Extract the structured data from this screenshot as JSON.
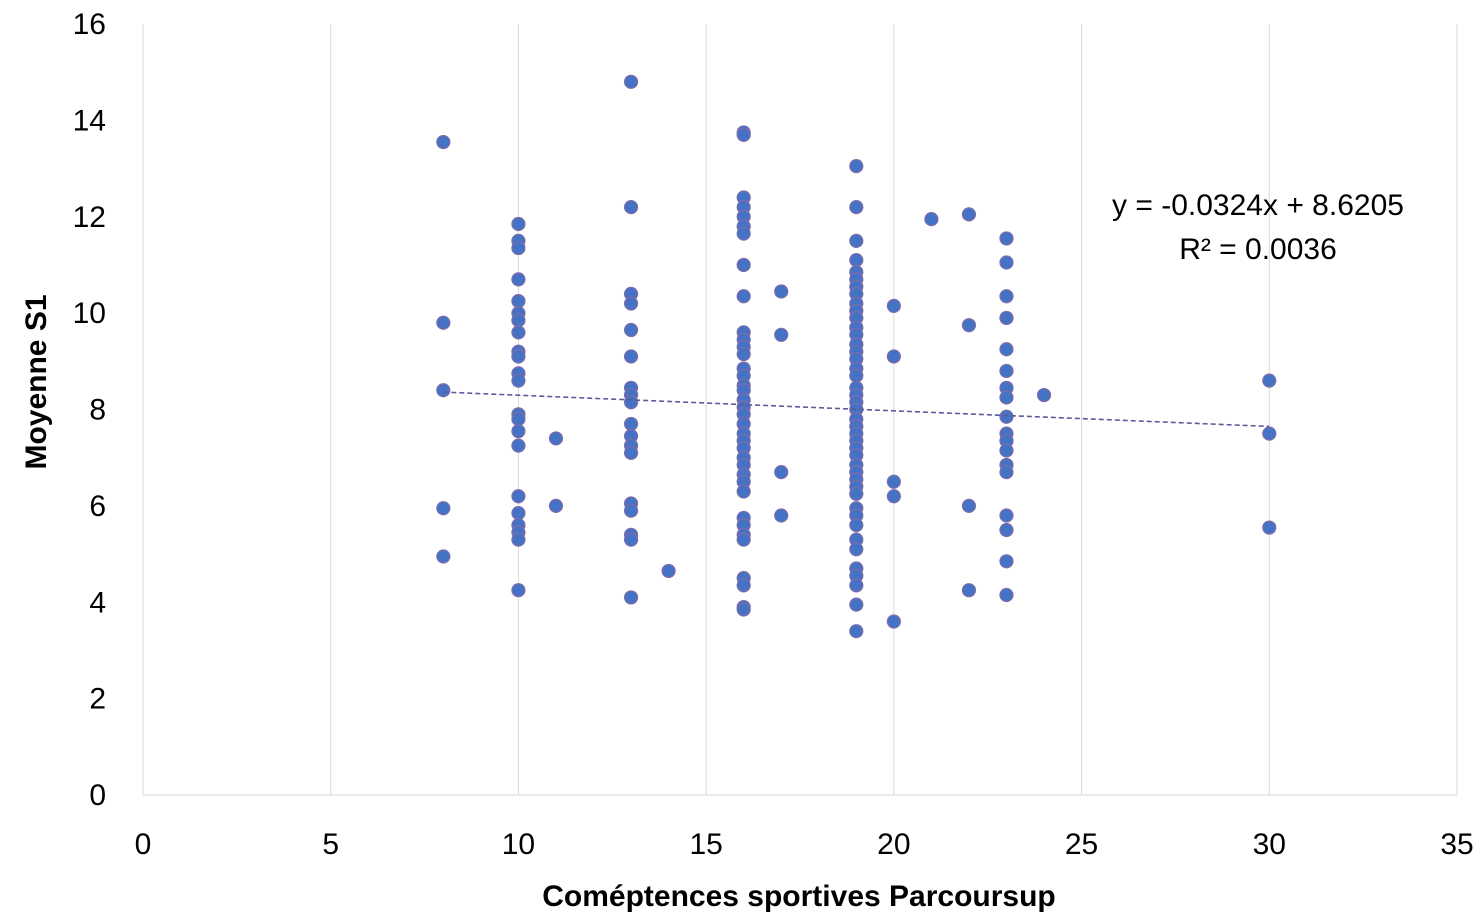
{
  "chart_data": {
    "type": "scatter",
    "xlabel": "Coméptences sportives Parcoursup",
    "ylabel": "Moyenne S1",
    "xlim": [
      0,
      35
    ],
    "ylim": [
      0,
      16
    ],
    "x_ticks": [
      0,
      5,
      10,
      15,
      20,
      25,
      30,
      35
    ],
    "y_ticks": [
      0,
      2,
      4,
      6,
      8,
      10,
      12,
      14,
      16
    ],
    "x_tick_labels": [
      "0",
      "5",
      "10",
      "15",
      "20",
      "25",
      "30",
      "35"
    ],
    "y_tick_labels": [
      "0",
      "2",
      "4",
      "6",
      "8",
      "10",
      "12",
      "14",
      "16"
    ],
    "grid": {
      "vertical": true,
      "horizontal": false
    },
    "marker_color": "#4472C4",
    "marker_edge_color": "#7F6CA8",
    "trendline": {
      "type": "linear",
      "slope": -0.0324,
      "intercept": 8.6205,
      "x_range": [
        8,
        30
      ],
      "color": "#5B5B9E",
      "style": "dashed",
      "equation_label": "y = -0.0324x + 8.6205",
      "r2_label": "R² = 0.0036"
    },
    "series": [
      {
        "points": [
          [
            8,
            13.55
          ],
          [
            8,
            9.8
          ],
          [
            8,
            8.4
          ],
          [
            8,
            5.95
          ],
          [
            8,
            4.95
          ],
          [
            10,
            11.85
          ],
          [
            10,
            11.5
          ],
          [
            10,
            11.35
          ],
          [
            10,
            10.7
          ],
          [
            10,
            10.25
          ],
          [
            10,
            10.0
          ],
          [
            10,
            9.85
          ],
          [
            10,
            9.6
          ],
          [
            10,
            9.2
          ],
          [
            10,
            9.1
          ],
          [
            10,
            8.75
          ],
          [
            10,
            8.6
          ],
          [
            10,
            7.9
          ],
          [
            10,
            7.8
          ],
          [
            10,
            7.55
          ],
          [
            10,
            7.25
          ],
          [
            10,
            6.2
          ],
          [
            10,
            5.85
          ],
          [
            10,
            5.6
          ],
          [
            10,
            5.45
          ],
          [
            10,
            5.3
          ],
          [
            10,
            4.25
          ],
          [
            11,
            7.4
          ],
          [
            11,
            6.0
          ],
          [
            13,
            14.8
          ],
          [
            13,
            12.2
          ],
          [
            13,
            10.4
          ],
          [
            13,
            10.2
          ],
          [
            13,
            9.65
          ],
          [
            13,
            9.1
          ],
          [
            13,
            8.45
          ],
          [
            13,
            8.3
          ],
          [
            13,
            8.15
          ],
          [
            13,
            7.7
          ],
          [
            13,
            7.45
          ],
          [
            13,
            7.25
          ],
          [
            13,
            7.1
          ],
          [
            13,
            6.05
          ],
          [
            13,
            5.9
          ],
          [
            13,
            5.4
          ],
          [
            13,
            5.3
          ],
          [
            13,
            4.1
          ],
          [
            14,
            4.65
          ],
          [
            16,
            13.75
          ],
          [
            16,
            13.7
          ],
          [
            16,
            12.4
          ],
          [
            16,
            12.2
          ],
          [
            16,
            12.0
          ],
          [
            16,
            11.8
          ],
          [
            16,
            11.65
          ],
          [
            16,
            11.0
          ],
          [
            16,
            10.35
          ],
          [
            16,
            9.6
          ],
          [
            16,
            9.45
          ],
          [
            16,
            9.3
          ],
          [
            16,
            9.15
          ],
          [
            16,
            8.85
          ],
          [
            16,
            8.7
          ],
          [
            16,
            8.5
          ],
          [
            16,
            8.4
          ],
          [
            16,
            8.2
          ],
          [
            16,
            8.05
          ],
          [
            16,
            7.9
          ],
          [
            16,
            7.7
          ],
          [
            16,
            7.5
          ],
          [
            16,
            7.35
          ],
          [
            16,
            7.2
          ],
          [
            16,
            7.0
          ],
          [
            16,
            6.85
          ],
          [
            16,
            6.65
          ],
          [
            16,
            6.5
          ],
          [
            16,
            6.3
          ],
          [
            16,
            5.75
          ],
          [
            16,
            5.6
          ],
          [
            16,
            5.4
          ],
          [
            16,
            5.3
          ],
          [
            16,
            4.5
          ],
          [
            16,
            4.35
          ],
          [
            16,
            3.9
          ],
          [
            16,
            3.85
          ],
          [
            17,
            10.45
          ],
          [
            17,
            9.55
          ],
          [
            17,
            6.7
          ],
          [
            17,
            5.8
          ],
          [
            19,
            13.05
          ],
          [
            19,
            12.2
          ],
          [
            19,
            11.5
          ],
          [
            19,
            11.1
          ],
          [
            19,
            10.85
          ],
          [
            19,
            10.7
          ],
          [
            19,
            10.55
          ],
          [
            19,
            10.4
          ],
          [
            19,
            10.2
          ],
          [
            19,
            10.05
          ],
          [
            19,
            9.9
          ],
          [
            19,
            9.7
          ],
          [
            19,
            9.55
          ],
          [
            19,
            9.35
          ],
          [
            19,
            9.2
          ],
          [
            19,
            9.05
          ],
          [
            19,
            8.85
          ],
          [
            19,
            8.7
          ],
          [
            19,
            8.45
          ],
          [
            19,
            8.3
          ],
          [
            19,
            8.15
          ],
          [
            19,
            8.0
          ],
          [
            19,
            7.8
          ],
          [
            19,
            7.65
          ],
          [
            19,
            7.5
          ],
          [
            19,
            7.35
          ],
          [
            19,
            7.2
          ],
          [
            19,
            7.05
          ],
          [
            19,
            6.85
          ],
          [
            19,
            6.7
          ],
          [
            19,
            6.55
          ],
          [
            19,
            6.4
          ],
          [
            19,
            6.25
          ],
          [
            19,
            5.95
          ],
          [
            19,
            5.8
          ],
          [
            19,
            5.6
          ],
          [
            19,
            5.3
          ],
          [
            19,
            5.1
          ],
          [
            19,
            4.7
          ],
          [
            19,
            4.55
          ],
          [
            19,
            4.35
          ],
          [
            19,
            3.95
          ],
          [
            19,
            3.4
          ],
          [
            20,
            10.15
          ],
          [
            20,
            9.1
          ],
          [
            20,
            6.5
          ],
          [
            20,
            6.2
          ],
          [
            20,
            3.6
          ],
          [
            21,
            11.95
          ],
          [
            22,
            12.05
          ],
          [
            22,
            9.75
          ],
          [
            22,
            6.0
          ],
          [
            22,
            4.25
          ],
          [
            23,
            11.55
          ],
          [
            23,
            11.05
          ],
          [
            23,
            10.35
          ],
          [
            23,
            9.9
          ],
          [
            23,
            9.25
          ],
          [
            23,
            8.8
          ],
          [
            23,
            8.45
          ],
          [
            23,
            8.25
          ],
          [
            23,
            7.85
          ],
          [
            23,
            7.5
          ],
          [
            23,
            7.35
          ],
          [
            23,
            7.15
          ],
          [
            23,
            6.85
          ],
          [
            23,
            6.7
          ],
          [
            23,
            5.8
          ],
          [
            23,
            5.5
          ],
          [
            23,
            4.85
          ],
          [
            23,
            4.15
          ],
          [
            24,
            8.3
          ],
          [
            30,
            8.6
          ],
          [
            30,
            7.5
          ],
          [
            30,
            5.55
          ]
        ]
      }
    ]
  }
}
